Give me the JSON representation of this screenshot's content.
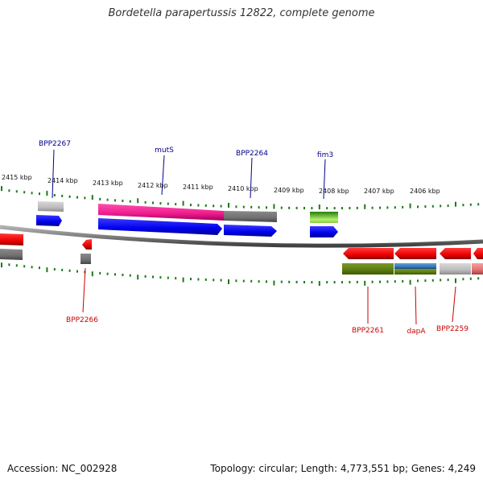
{
  "title": "Bordetella parapertussis 12822, complete genome",
  "footer": {
    "accession": "Accession: NC_002928",
    "summary": "Topology: circular; Length: 4,773,551 bp; Genes: 4,249"
  },
  "colors": {
    "forward_label": "#00008b",
    "reverse_label": "#cc0000",
    "tick": "#1a7a1a",
    "backbone": "#808080"
  },
  "kbp_labels": [
    "2415 kbp",
    "2414 kbp",
    "2413 kbp",
    "2412 kbp",
    "2411 kbp",
    "2410 kbp",
    "2409 kbp",
    "2408 kbp",
    "2407 kbp",
    "2406 kbp"
  ],
  "genes": {
    "forward": [
      "BPP2267",
      "mutS",
      "BPP2264",
      "fim3"
    ],
    "reverse": [
      "BPP2266",
      "BPP2261",
      "dapA",
      "BPP2259"
    ]
  }
}
